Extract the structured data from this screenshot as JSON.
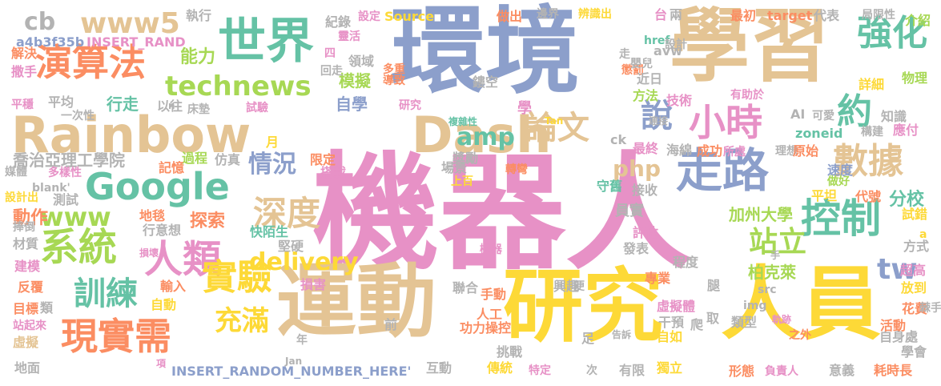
{
  "words": [
    {
      "text": "機器人",
      "color": "#e791c6"
    },
    {
      "text": "環境",
      "color": "#8c9fcb"
    },
    {
      "text": "學習",
      "color": "#e4c494"
    },
    {
      "text": "運動",
      "color": "#e4c494"
    },
    {
      "text": "研究",
      "color": "#fdd937"
    },
    {
      "text": "人員",
      "color": "#fdd937"
    },
    {
      "text": "Rainbow",
      "color": "#e4c494"
    },
    {
      "text": "Dash",
      "color": "#e4c494"
    },
    {
      "text": "世界",
      "color": "#65c2a5"
    },
    {
      "text": "演算法",
      "color": "#fb8d62"
    },
    {
      "text": "Google",
      "color": "#65c2a5"
    },
    {
      "text": "走路",
      "color": "#8c9fcb"
    },
    {
      "text": "小時",
      "color": "#e791c6"
    },
    {
      "text": "控制",
      "color": "#65c2a5"
    },
    {
      "text": "強化",
      "color": "#65c2a5"
    },
    {
      "text": "數據",
      "color": "#e4c494"
    },
    {
      "text": "約",
      "color": "#65c2a5"
    },
    {
      "text": "系統",
      "color": "#a7d854"
    },
    {
      "text": "人類",
      "color": "#e791c6"
    },
    {
      "text": "現實需",
      "color": "#fb8d62"
    },
    {
      "text": "實驗",
      "color": "#fdd937"
    },
    {
      "text": "訓練",
      "color": "#65c2a5"
    },
    {
      "text": "深度",
      "color": "#e4c494"
    },
    {
      "text": "論文",
      "color": "#e4c494"
    },
    {
      "text": "說",
      "color": "#8c9fcb"
    },
    {
      "text": "technews",
      "color": "#a7d854"
    },
    {
      "text": "www5",
      "color": "#e4c494"
    },
    {
      "text": "www",
      "color": "#a7d854"
    },
    {
      "text": "delivery",
      "color": "#fdd937"
    },
    {
      "text": "amp",
      "color": "#65c2a5"
    },
    {
      "text": "php",
      "color": "#e4c494"
    },
    {
      "text": "tw",
      "color": "#8c9fcb"
    },
    {
      "text": "cb",
      "color": "#b3b3b3"
    },
    {
      "text": "站立",
      "color": "#a7d854"
    },
    {
      "text": "情況",
      "color": "#8c9fcb"
    },
    {
      "text": "充滿",
      "color": "#fdd937"
    },
    {
      "text": "能力",
      "color": "#a7d854"
    },
    {
      "text": "喬治亞理工學院",
      "color": "#b3b3b3"
    },
    {
      "text": "動作",
      "color": "#fb8d62"
    },
    {
      "text": "探索",
      "color": "#fb8d62"
    },
    {
      "text": "加州大學",
      "color": "#a7d854"
    },
    {
      "text": "柏克萊",
      "color": "#a7d854"
    },
    {
      "text": "員實",
      "color": "#b3b3b3"
    },
    {
      "text": "自學",
      "color": "#8c9fcb"
    },
    {
      "text": "模擬",
      "color": "#a7d854"
    },
    {
      "text": "分校",
      "color": "#65c2a5"
    },
    {
      "text": "行走",
      "color": "#65c2a5"
    },
    {
      "text": "a4b3f35b",
      "color": "#8c9fcb"
    },
    {
      "text": "INSERT_RAND",
      "color": "#e791c6"
    },
    {
      "text": "INSERT_RANDOM_NUMBER_HERE'",
      "color": "#8c9fcb"
    },
    {
      "text": "執行",
      "color": "#b3b3b3"
    },
    {
      "text": "紀錄",
      "color": "#b3b3b3"
    },
    {
      "text": "設定",
      "color": "#e791c6"
    },
    {
      "text": "Source",
      "color": "#fdd937"
    },
    {
      "text": "做出",
      "color": "#fb8d62"
    },
    {
      "text": "邊界",
      "color": "#b3b3b3"
    },
    {
      "text": "辨識出",
      "color": "#fdd937"
    },
    {
      "text": "台",
      "color": "#e791c6"
    },
    {
      "text": "兩",
      "color": "#b3b3b3"
    },
    {
      "text": "最初",
      "color": "#fb8d62"
    },
    {
      "text": "target",
      "color": "#fb8d62"
    },
    {
      "text": "代表",
      "color": "#b3b3b3"
    },
    {
      "text": "局限性",
      "color": "#b3b3b3"
    },
    {
      "text": "介紹",
      "color": "#a7d854"
    },
    {
      "text": "解決",
      "color": "#fb8d62"
    },
    {
      "text": "撒手",
      "color": "#e791c6"
    },
    {
      "text": "平穩",
      "color": "#e791c6"
    },
    {
      "text": "平均",
      "color": "#b3b3b3"
    },
    {
      "text": "一次性",
      "color": "#b3b3b3"
    },
    {
      "text": "以往",
      "color": "#b3b3b3"
    },
    {
      "text": "床墊",
      "color": "#b3b3b3"
    },
    {
      "text": "試驗",
      "color": "#e791c6"
    },
    {
      "text": "學",
      "color": "#e791c6"
    },
    {
      "text": "方法",
      "color": "#a7d854"
    },
    {
      "text": "技術",
      "color": "#e791c6"
    },
    {
      "text": "有助於",
      "color": "#e791c6"
    },
    {
      "text": "知識",
      "color": "#b3b3b3"
    },
    {
      "text": "應付",
      "color": "#e791c6"
    },
    {
      "text": "物理",
      "color": "#a7d854"
    },
    {
      "text": "詳細",
      "color": "#fdd937"
    },
    {
      "text": "AI",
      "color": "#b3b3b3"
    },
    {
      "text": "可愛",
      "color": "#b3b3b3"
    },
    {
      "text": "zoneid",
      "color": "#65c2a5"
    },
    {
      "text": "構建",
      "color": "#b3b3b3"
    },
    {
      "text": "ck",
      "color": "#b3b3b3"
    },
    {
      "text": "最終",
      "color": "#e791c6"
    },
    {
      "text": "海綿",
      "color": "#b3b3b3"
    },
    {
      "text": "成功",
      "color": "#fb8d62"
    },
    {
      "text": "所處",
      "color": "#e791c6"
    },
    {
      "text": "理想",
      "color": "#b3b3b3"
    },
    {
      "text": "原始",
      "color": "#fb8d62"
    },
    {
      "text": "速度",
      "color": "#8c9fcb"
    },
    {
      "text": "做好",
      "color": "#a7d854"
    },
    {
      "text": "平坦",
      "color": "#fdd937"
    },
    {
      "text": "代號",
      "color": "#fb8d62"
    },
    {
      "text": "試錯",
      "color": "#fdd937"
    },
    {
      "text": "方式",
      "color": "#b3b3b3"
    },
    {
      "text": "a",
      "color": "#fdd937"
    },
    {
      "text": "href",
      "color": "#65c2a5"
    },
    {
      "text": "avw",
      "color": "#b3b3b3"
    },
    {
      "text": "走",
      "color": "#b3b3b3"
    },
    {
      "text": "設計",
      "color": "#b3b3b3"
    },
    {
      "text": "懲罰",
      "color": "#fb8d62"
    },
    {
      "text": "嬰兒",
      "color": "#b3b3b3"
    },
    {
      "text": "近日",
      "color": "#b3b3b3"
    },
    {
      "text": "靈活",
      "color": "#e791c6"
    },
    {
      "text": "四",
      "color": "#e791c6"
    },
    {
      "text": "領域",
      "color": "#b3b3b3"
    },
    {
      "text": "多重",
      "color": "#fb8d62"
    },
    {
      "text": "回走",
      "color": "#b3b3b3"
    },
    {
      "text": "導致",
      "color": "#fb8d62"
    },
    {
      "text": "鏤空",
      "color": "#b3b3b3"
    },
    {
      "text": "複雜性",
      "color": "#65c2a5"
    },
    {
      "text": "Tan",
      "color": "#fdd937"
    },
    {
      "text": "連接",
      "color": "#b3b3b3"
    },
    {
      "text": "月",
      "color": "#fdd937"
    },
    {
      "text": "過程",
      "color": "#a7d854"
    },
    {
      "text": "記憶",
      "color": "#fb8d62"
    },
    {
      "text": "仿真",
      "color": "#b3b3b3"
    },
    {
      "text": "限定",
      "color": "#fb8d62"
    },
    {
      "text": "搭載",
      "color": "#e791c6"
    },
    {
      "text": "獎勵",
      "color": "#b3b3b3"
    },
    {
      "text": "場景",
      "color": "#b3b3b3"
    },
    {
      "text": "上百",
      "color": "#fdd937"
    },
    {
      "text": "轉彎",
      "color": "#fb8d62"
    },
    {
      "text": "守舊",
      "color": "#65c2a5"
    },
    {
      "text": "接收",
      "color": "#b3b3b3"
    },
    {
      "text": "媒體",
      "color": "#b3b3b3"
    },
    {
      "text": "多樣性",
      "color": "#e791c6"
    },
    {
      "text": "blank'",
      "color": "#b3b3b3"
    },
    {
      "text": "設計出",
      "color": "#fdd937"
    },
    {
      "text": "測試",
      "color": "#b3b3b3"
    },
    {
      "text": "地毯",
      "color": "#fb8d62"
    },
    {
      "text": "行意想",
      "color": "#b3b3b3"
    },
    {
      "text": "快陌生",
      "color": "#65c2a5"
    },
    {
      "text": "堅硬",
      "color": "#b3b3b3"
    },
    {
      "text": "捧倒",
      "color": "#b3b3b3"
    },
    {
      "text": "材質",
      "color": "#b3b3b3"
    },
    {
      "text": "損壞",
      "color": "#e791c6"
    },
    {
      "text": "建模",
      "color": "#e791c6"
    },
    {
      "text": "反覆",
      "color": "#fb8d62"
    },
    {
      "text": "損害",
      "color": "#e791c6"
    },
    {
      "text": "輸入",
      "color": "#fb8d62"
    },
    {
      "text": "聯合",
      "color": "#b3b3b3"
    },
    {
      "text": "興趣",
      "color": "#b3b3b3"
    },
    {
      "text": "便",
      "color": "#b3b3b3"
    },
    {
      "text": "src",
      "color": "#b3b3b3"
    },
    {
      "text": "img",
      "color": "#b3b3b3"
    },
    {
      "text": "目標",
      "color": "#fb8d62"
    },
    {
      "text": "類",
      "color": "#b3b3b3"
    },
    {
      "text": "站起來",
      "color": "#e791c6"
    },
    {
      "text": "虛擬",
      "color": "#e4c494"
    },
    {
      "text": "自動",
      "color": "#fdd937"
    },
    {
      "text": "手動",
      "color": "#fb8d62"
    },
    {
      "text": "人工",
      "color": "#fb8d62"
    },
    {
      "text": "功力操控",
      "color": "#fb8d62"
    },
    {
      "text": "前",
      "color": "#b3b3b3"
    },
    {
      "text": "年",
      "color": "#b3b3b3"
    },
    {
      "text": "地面",
      "color": "#b3b3b3"
    },
    {
      "text": "項",
      "color": "#e791c6"
    },
    {
      "text": "互動",
      "color": "#b3b3b3"
    },
    {
      "text": "傳統",
      "color": "#fdd937"
    },
    {
      "text": "特定",
      "color": "#e791c6"
    },
    {
      "text": "挑戰",
      "color": "#b3b3b3"
    },
    {
      "text": "足",
      "color": "#b3b3b3"
    },
    {
      "text": "次",
      "color": "#b3b3b3"
    },
    {
      "text": "有限",
      "color": "#b3b3b3"
    },
    {
      "text": "獨立",
      "color": "#fdd937"
    },
    {
      "text": "形態",
      "color": "#fb8d62"
    },
    {
      "text": "負責人",
      "color": "#e791c6"
    },
    {
      "text": "意義",
      "color": "#b3b3b3"
    },
    {
      "text": "耗時長",
      "color": "#fb8d62"
    },
    {
      "text": "學會",
      "color": "#b3b3b3"
    },
    {
      "text": "自身處",
      "color": "#b3b3b3"
    },
    {
      "text": "活動",
      "color": "#fb8d62"
    },
    {
      "text": "花費",
      "color": "#fb8d62"
    },
    {
      "text": "棘手",
      "color": "#b3b3b3"
    },
    {
      "text": "放到",
      "color": "#fdd937"
    },
    {
      "text": "超高",
      "color": "#e791c6"
    },
    {
      "text": "專業",
      "color": "#fb8d62"
    },
    {
      "text": "程度",
      "color": "#b3b3b3"
    },
    {
      "text": "腿",
      "color": "#b3b3b3"
    },
    {
      "text": "虛擬體",
      "color": "#e791c6"
    },
    {
      "text": "干預",
      "color": "#b3b3b3"
    },
    {
      "text": "自如",
      "color": "#fdd937"
    },
    {
      "text": "取",
      "color": "#b3b3b3"
    },
    {
      "text": "爬",
      "color": "#b3b3b3"
    },
    {
      "text": "類型",
      "color": "#b3b3b3"
    },
    {
      "text": "軌跡",
      "color": "#e791c6"
    },
    {
      "text": "之外",
      "color": "#fb8d62"
    },
    {
      "text": "告訴",
      "color": "#b3b3b3"
    },
    {
      "text": "評估",
      "color": "#e791c6"
    },
    {
      "text": "發表",
      "color": "#b3b3b3"
    },
    {
      "text": "機器",
      "color": "#e791c6"
    },
    {
      "text": "手",
      "color": "#b3b3b3"
    },
    {
      "text": "Jan",
      "color": "#b3b3b3"
    },
    {
      "text": "n",
      "color": "#b3b3b3"
    },
    {
      "text": "研究",
      "color": "#e791c6"
    }
  ]
}
